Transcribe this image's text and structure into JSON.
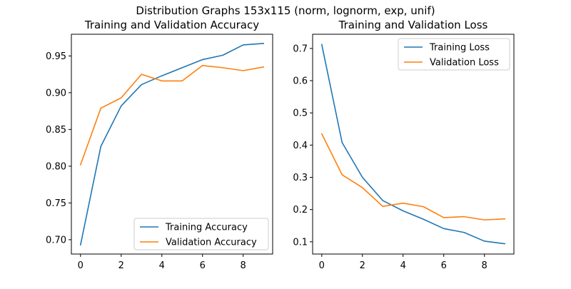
{
  "figure": {
    "suptitle": "Distribution Graphs 153x115 (norm, lognorm, exp, unif)"
  },
  "chart_data": [
    {
      "type": "line",
      "title": "Training and Validation Accuracy",
      "xlabel": "",
      "ylabel": "",
      "x": [
        0,
        1,
        2,
        3,
        4,
        5,
        6,
        7,
        8,
        9
      ],
      "xlim": [
        -0.45,
        9.45
      ],
      "ylim": [
        0.6805,
        0.9795
      ],
      "xticks": [
        0,
        2,
        4,
        6,
        8
      ],
      "xtick_labels": [
        "0",
        "2",
        "4",
        "6",
        "8"
      ],
      "yticks": [
        0.7,
        0.75,
        0.8,
        0.85,
        0.9,
        0.95
      ],
      "ytick_labels": [
        "0.70",
        "0.75",
        "0.80",
        "0.85",
        "0.90",
        "0.95"
      ],
      "grid": false,
      "legend_position": "lower-right",
      "series": [
        {
          "name": "Training Accuracy",
          "color": "#1f77b4",
          "values": [
            0.693,
            0.827,
            0.882,
            0.911,
            0.923,
            0.934,
            0.945,
            0.951,
            0.965,
            0.967
          ]
        },
        {
          "name": "Validation Accuracy",
          "color": "#ff7f0e",
          "values": [
            0.802,
            0.879,
            0.893,
            0.925,
            0.916,
            0.916,
            0.937,
            0.934,
            0.93,
            0.935
          ]
        }
      ]
    },
    {
      "type": "line",
      "title": "Training and Validation Loss",
      "xlabel": "",
      "ylabel": "",
      "x": [
        0,
        1,
        2,
        3,
        4,
        5,
        6,
        7,
        8,
        9
      ],
      "xlim": [
        -0.45,
        9.45
      ],
      "ylim": [
        0.062,
        0.744
      ],
      "xticks": [
        0,
        2,
        4,
        6,
        8
      ],
      "xtick_labels": [
        "0",
        "2",
        "4",
        "6",
        "8"
      ],
      "yticks": [
        0.1,
        0.2,
        0.3,
        0.4,
        0.5,
        0.6,
        0.7
      ],
      "ytick_labels": [
        "0.1",
        "0.2",
        "0.3",
        "0.4",
        "0.5",
        "0.6",
        "0.7"
      ],
      "grid": false,
      "legend_position": "upper-right",
      "series": [
        {
          "name": "Training Loss",
          "color": "#1f77b4",
          "values": [
            0.712,
            0.408,
            0.3,
            0.228,
            0.196,
            0.17,
            0.141,
            0.129,
            0.102,
            0.094
          ]
        },
        {
          "name": "Validation Loss",
          "color": "#ff7f0e",
          "values": [
            0.435,
            0.308,
            0.268,
            0.21,
            0.22,
            0.209,
            0.175,
            0.178,
            0.168,
            0.171
          ]
        }
      ]
    }
  ]
}
